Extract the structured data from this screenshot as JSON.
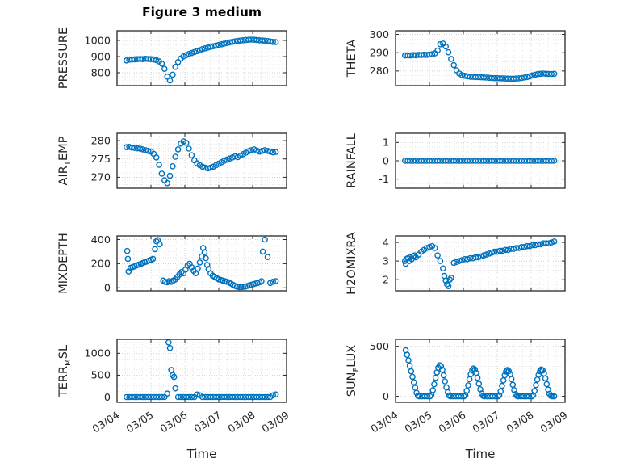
{
  "title": "Figure 3 medium",
  "xlabel": "Time",
  "style": {
    "marker_color": "#0072BD",
    "axis_color": "#262626",
    "grid_major": "#c2c2c2",
    "grid_minor": "#e0e0e0"
  },
  "x_axis": {
    "lim": [
      0,
      5
    ],
    "tick_values": [
      0,
      1,
      2,
      3,
      4,
      5
    ],
    "tick_labels": [
      "03/04",
      "03/05",
      "03/06",
      "03/07",
      "03/08",
      "03/09"
    ],
    "minor_step": 0.25
  },
  "chart_data": [
    {
      "type": "scatter",
      "name": "PRESSURE",
      "ylabel": {
        "pre": "PRESSURE",
        "sub": "",
        "post": ""
      },
      "ylim": [
        720,
        1060
      ],
      "yticks": [
        800,
        900,
        1000
      ],
      "minor_y": 25,
      "x": [
        0.28,
        0.36,
        0.44,
        0.52,
        0.6,
        0.68,
        0.76,
        0.84,
        0.92,
        1.0,
        1.08,
        1.16,
        1.24,
        1.32,
        1.4,
        1.48,
        1.56,
        1.64,
        1.72,
        1.8,
        1.88,
        1.96,
        2.04,
        2.12,
        2.2,
        2.28,
        2.36,
        2.44,
        2.52,
        2.6,
        2.68,
        2.76,
        2.84,
        2.92,
        3.0,
        3.08,
        3.16,
        3.24,
        3.32,
        3.4,
        3.48,
        3.56,
        3.64,
        3.72,
        3.8,
        3.88,
        3.96,
        4.04,
        4.12,
        4.2,
        4.28,
        4.36,
        4.44,
        4.52,
        4.6,
        4.68
      ],
      "y": [
        876,
        880,
        882,
        883,
        884,
        885,
        884,
        886,
        885,
        884,
        882,
        878,
        870,
        856,
        824,
        776,
        752,
        788,
        836,
        866,
        888,
        901,
        909,
        916,
        922,
        928,
        934,
        940,
        946,
        951,
        956,
        960,
        964,
        968,
        972,
        976,
        980,
        984,
        988,
        991,
        994,
        997,
        999,
        1001,
        1003,
        1004,
        1005,
        1004,
        1003,
        1001,
        1000,
        998,
        996,
        993,
        991,
        990
      ]
    },
    {
      "type": "scatter",
      "name": "THETA",
      "ylabel": {
        "pre": "THETA",
        "sub": "",
        "post": ""
      },
      "ylim": [
        272,
        302
      ],
      "yticks": [
        280,
        290,
        300
      ],
      "minor_y": 2.5,
      "x": [
        0.28,
        0.36,
        0.44,
        0.52,
        0.6,
        0.68,
        0.76,
        0.84,
        0.92,
        1.0,
        1.08,
        1.16,
        1.24,
        1.32,
        1.4,
        1.48,
        1.56,
        1.64,
        1.72,
        1.8,
        1.88,
        1.96,
        2.04,
        2.12,
        2.2,
        2.28,
        2.36,
        2.44,
        2.52,
        2.6,
        2.68,
        2.76,
        2.84,
        2.92,
        3.0,
        3.08,
        3.16,
        3.24,
        3.32,
        3.4,
        3.48,
        3.56,
        3.64,
        3.72,
        3.8,
        3.88,
        3.96,
        4.04,
        4.12,
        4.2,
        4.28,
        4.36,
        4.44,
        4.52,
        4.6,
        4.68
      ],
      "y": [
        288.5,
        288.6,
        288.5,
        288.7,
        288.6,
        288.8,
        288.7,
        288.9,
        288.8,
        289.0,
        289.2,
        289.6,
        291.2,
        294.6,
        295.0,
        293.4,
        290.2,
        286.6,
        283.2,
        280.4,
        278.6,
        277.8,
        277.4,
        277.1,
        276.9,
        276.8,
        276.7,
        276.7,
        276.6,
        276.5,
        276.4,
        276.3,
        276.2,
        276.1,
        276.1,
        276.0,
        276.0,
        275.9,
        275.9,
        275.8,
        275.8,
        275.9,
        276.0,
        276.2,
        276.4,
        276.7,
        277.1,
        277.6,
        278.0,
        278.3,
        278.5,
        278.6,
        278.5,
        278.4,
        278.4,
        278.5
      ]
    },
    {
      "type": "scatter",
      "name": "AIR_TEMP",
      "ylabel": {
        "pre": "AIR",
        "sub": "T",
        "post": "EMP"
      },
      "ylim": [
        267,
        282
      ],
      "yticks": [
        270,
        275,
        280
      ],
      "minor_y": 1,
      "x": [
        0.28,
        0.36,
        0.44,
        0.52,
        0.6,
        0.68,
        0.76,
        0.84,
        0.92,
        1.0,
        1.08,
        1.16,
        1.24,
        1.32,
        1.4,
        1.48,
        1.56,
        1.64,
        1.72,
        1.8,
        1.88,
        1.96,
        2.04,
        2.12,
        2.2,
        2.28,
        2.36,
        2.44,
        2.52,
        2.6,
        2.68,
        2.76,
        2.84,
        2.92,
        3.0,
        3.08,
        3.16,
        3.24,
        3.32,
        3.4,
        3.48,
        3.56,
        3.64,
        3.72,
        3.8,
        3.88,
        3.96,
        4.04,
        4.12,
        4.2,
        4.28,
        4.36,
        4.44,
        4.52,
        4.6,
        4.68
      ],
      "y": [
        278.2,
        278.3,
        278.1,
        278.0,
        277.9,
        277.8,
        277.6,
        277.4,
        277.2,
        277.0,
        276.4,
        275.4,
        273.4,
        271.0,
        269.2,
        268.4,
        270.4,
        273.0,
        275.6,
        277.6,
        279.2,
        279.8,
        279.4,
        277.8,
        276.0,
        274.6,
        273.8,
        273.3,
        272.9,
        272.6,
        272.4,
        272.6,
        272.9,
        273.3,
        273.7,
        274.1,
        274.5,
        274.8,
        275.1,
        275.4,
        275.7,
        275.5,
        275.9,
        276.3,
        276.7,
        277.1,
        277.4,
        277.6,
        277.3,
        277.0,
        277.2,
        277.4,
        277.2,
        277.0,
        276.8,
        276.9
      ]
    },
    {
      "type": "scatter",
      "name": "RAINFALL",
      "ylabel": {
        "pre": "RAINFALL",
        "sub": "",
        "post": ""
      },
      "ylim": [
        -1.5,
        1.5
      ],
      "yticks": [
        -1,
        0,
        1
      ],
      "minor_y": 0.25,
      "x": [
        0.28,
        0.36,
        0.44,
        0.52,
        0.6,
        0.68,
        0.76,
        0.84,
        0.92,
        1.0,
        1.08,
        1.16,
        1.24,
        1.32,
        1.4,
        1.48,
        1.56,
        1.64,
        1.72,
        1.8,
        1.88,
        1.96,
        2.04,
        2.12,
        2.2,
        2.28,
        2.36,
        2.44,
        2.52,
        2.6,
        2.68,
        2.76,
        2.84,
        2.92,
        3.0,
        3.08,
        3.16,
        3.24,
        3.32,
        3.4,
        3.48,
        3.56,
        3.64,
        3.72,
        3.8,
        3.88,
        3.96,
        4.04,
        4.12,
        4.2,
        4.28,
        4.36,
        4.44,
        4.52,
        4.6,
        4.68
      ],
      "y": [
        0,
        0,
        0,
        0,
        0,
        0,
        0,
        0,
        0,
        0,
        0,
        0,
        0,
        0,
        0,
        0,
        0,
        0,
        0,
        0,
        0,
        0,
        0,
        0,
        0,
        0,
        0,
        0,
        0,
        0,
        0,
        0,
        0,
        0,
        0,
        0,
        0,
        0,
        0,
        0,
        0,
        0,
        0,
        0,
        0,
        0,
        0,
        0,
        0,
        0,
        0,
        0,
        0,
        0,
        0,
        0
      ]
    },
    {
      "type": "scatter",
      "name": "MIXDEPTH",
      "ylabel": {
        "pre": "MIXDEPTH",
        "sub": "",
        "post": ""
      },
      "ylim": [
        -25,
        430
      ],
      "yticks": [
        0,
        200,
        400
      ],
      "minor_y": 50,
      "x": [
        0.3,
        0.32,
        0.34,
        0.4,
        0.46,
        0.52,
        0.58,
        0.64,
        0.7,
        0.76,
        0.82,
        0.88,
        0.94,
        1.0,
        1.06,
        1.12,
        1.16,
        1.2,
        1.26,
        1.36,
        1.42,
        1.48,
        1.54,
        1.6,
        1.66,
        1.72,
        1.78,
        1.84,
        1.9,
        1.96,
        2.02,
        2.08,
        2.14,
        2.2,
        2.26,
        2.32,
        2.38,
        2.44,
        2.5,
        2.54,
        2.58,
        2.62,
        2.66,
        2.7,
        2.76,
        2.82,
        2.88,
        2.94,
        3.0,
        3.06,
        3.12,
        3.18,
        3.24,
        3.3,
        3.36,
        3.42,
        3.48,
        3.54,
        3.6,
        3.66,
        3.72,
        3.78,
        3.84,
        3.9,
        3.96,
        4.02,
        4.08,
        4.14,
        4.2,
        4.26,
        4.3,
        4.36,
        4.44,
        4.52,
        4.6,
        4.68
      ],
      "y": [
        305,
        240,
        135,
        165,
        172,
        178,
        186,
        192,
        198,
        205,
        212,
        218,
        226,
        232,
        240,
        320,
        385,
        395,
        360,
        60,
        50,
        45,
        55,
        50,
        60,
        70,
        90,
        110,
        130,
        120,
        150,
        185,
        200,
        170,
        140,
        120,
        160,
        210,
        260,
        330,
        295,
        245,
        190,
        155,
        120,
        100,
        90,
        80,
        70,
        65,
        60,
        55,
        50,
        45,
        35,
        25,
        15,
        10,
        5,
        5,
        8,
        10,
        15,
        20,
        25,
        30,
        35,
        40,
        45,
        55,
        300,
        400,
        255,
        40,
        50,
        55
      ]
    },
    {
      "type": "scatter",
      "name": "H2OMIXRA",
      "ylabel": {
        "pre": "H2OMIXRA",
        "sub": "",
        "post": ""
      },
      "ylim": [
        1.4,
        4.35
      ],
      "yticks": [
        2,
        3,
        4
      ],
      "minor_y": 0.25,
      "x": [
        0.28,
        0.3,
        0.32,
        0.36,
        0.4,
        0.44,
        0.48,
        0.52,
        0.56,
        0.6,
        0.68,
        0.76,
        0.84,
        0.92,
        1.0,
        1.08,
        1.16,
        1.24,
        1.32,
        1.4,
        1.44,
        1.48,
        1.52,
        1.56,
        1.6,
        1.64,
        1.72,
        1.8,
        1.88,
        1.96,
        2.04,
        2.12,
        2.2,
        2.28,
        2.36,
        2.44,
        2.52,
        2.6,
        2.68,
        2.76,
        2.84,
        2.92,
        3.0,
        3.08,
        3.16,
        3.24,
        3.32,
        3.4,
        3.48,
        3.56,
        3.64,
        3.72,
        3.8,
        3.88,
        3.96,
        4.04,
        4.12,
        4.2,
        4.28,
        4.36,
        4.44,
        4.52,
        4.6,
        4.68
      ],
      "y": [
        3.0,
        2.85,
        3.1,
        3.15,
        3.0,
        3.2,
        3.1,
        3.25,
        3.3,
        3.2,
        3.35,
        3.5,
        3.6,
        3.7,
        3.75,
        3.8,
        3.7,
        3.3,
        3.0,
        2.6,
        2.2,
        1.95,
        1.75,
        1.65,
        2.0,
        2.1,
        2.9,
        2.95,
        3.0,
        3.05,
        3.1,
        3.1,
        3.15,
        3.15,
        3.2,
        3.2,
        3.25,
        3.3,
        3.35,
        3.4,
        3.45,
        3.5,
        3.5,
        3.55,
        3.55,
        3.6,
        3.6,
        3.65,
        3.65,
        3.7,
        3.7,
        3.75,
        3.75,
        3.8,
        3.8,
        3.85,
        3.85,
        3.9,
        3.9,
        3.95,
        3.95,
        3.95,
        4.0,
        4.05
      ]
    },
    {
      "type": "scatter",
      "name": "TERR_MSL",
      "ylabel": {
        "pre": "TERR",
        "sub": "M",
        "post": "SL"
      },
      "ylim": [
        -120,
        1320
      ],
      "yticks": [
        0,
        500,
        1000
      ],
      "minor_y": 125,
      "x": [
        0.28,
        0.36,
        0.44,
        0.52,
        0.6,
        0.68,
        0.76,
        0.84,
        0.92,
        1.0,
        1.08,
        1.16,
        1.24,
        1.32,
        1.4,
        1.48,
        1.52,
        1.56,
        1.6,
        1.64,
        1.68,
        1.72,
        1.8,
        1.88,
        1.96,
        2.04,
        2.12,
        2.2,
        2.28,
        2.36,
        2.44,
        2.52,
        2.6,
        2.68,
        2.76,
        2.84,
        2.92,
        3.0,
        3.08,
        3.16,
        3.24,
        3.32,
        3.4,
        3.48,
        3.56,
        3.64,
        3.72,
        3.8,
        3.88,
        3.96,
        4.04,
        4.12,
        4.2,
        4.28,
        4.36,
        4.44,
        4.52,
        4.6,
        4.68
      ],
      "y": [
        0,
        0,
        0,
        0,
        0,
        0,
        0,
        0,
        0,
        0,
        0,
        0,
        0,
        0,
        0,
        80,
        1250,
        1120,
        620,
        500,
        460,
        200,
        0,
        0,
        0,
        0,
        0,
        0,
        0,
        60,
        40,
        0,
        0,
        0,
        0,
        0,
        0,
        0,
        0,
        0,
        0,
        0,
        0,
        0,
        0,
        0,
        0,
        0,
        0,
        0,
        0,
        0,
        0,
        0,
        0,
        0,
        0,
        40,
        60
      ]
    },
    {
      "type": "scatter",
      "name": "SUN_FLUX",
      "ylabel": {
        "pre": "SUN",
        "sub": "F",
        "post": "LUX"
      },
      "ylim": [
        -60,
        570
      ],
      "yticks": [
        0,
        500
      ],
      "minor_y": 100,
      "x": [
        0.3,
        0.34,
        0.38,
        0.42,
        0.46,
        0.5,
        0.54,
        0.58,
        0.62,
        0.66,
        0.7,
        0.78,
        0.86,
        0.94,
        1.02,
        1.06,
        1.1,
        1.14,
        1.18,
        1.22,
        1.26,
        1.3,
        1.34,
        1.38,
        1.42,
        1.46,
        1.5,
        1.54,
        1.58,
        1.62,
        1.7,
        1.78,
        1.86,
        1.94,
        2.02,
        2.06,
        2.1,
        2.14,
        2.18,
        2.22,
        2.26,
        2.3,
        2.34,
        2.38,
        2.42,
        2.46,
        2.5,
        2.54,
        2.58,
        2.62,
        2.7,
        2.78,
        2.86,
        2.94,
        3.02,
        3.06,
        3.1,
        3.14,
        3.18,
        3.22,
        3.26,
        3.3,
        3.34,
        3.38,
        3.42,
        3.46,
        3.5,
        3.54,
        3.58,
        3.62,
        3.7,
        3.78,
        3.86,
        3.94,
        4.02,
        4.06,
        4.1,
        4.14,
        4.18,
        4.22,
        4.26,
        4.3,
        4.34,
        4.38,
        4.42,
        4.46,
        4.5,
        4.54,
        4.58,
        4.62,
        4.68
      ],
      "y": [
        460,
        415,
        360,
        305,
        250,
        195,
        140,
        85,
        35,
        5,
        0,
        0,
        0,
        0,
        0,
        15,
        60,
        120,
        185,
        240,
        285,
        310,
        300,
        265,
        210,
        150,
        90,
        40,
        8,
        0,
        0,
        0,
        0,
        0,
        0,
        12,
        55,
        110,
        170,
        220,
        260,
        278,
        268,
        235,
        185,
        125,
        70,
        28,
        5,
        0,
        0,
        0,
        0,
        0,
        0,
        10,
        50,
        105,
        160,
        210,
        248,
        262,
        252,
        222,
        172,
        115,
        62,
        22,
        4,
        0,
        0,
        0,
        0,
        0,
        0,
        12,
        55,
        112,
        168,
        215,
        252,
        268,
        258,
        228,
        180,
        122,
        68,
        25,
        5,
        0,
        0
      ]
    }
  ]
}
